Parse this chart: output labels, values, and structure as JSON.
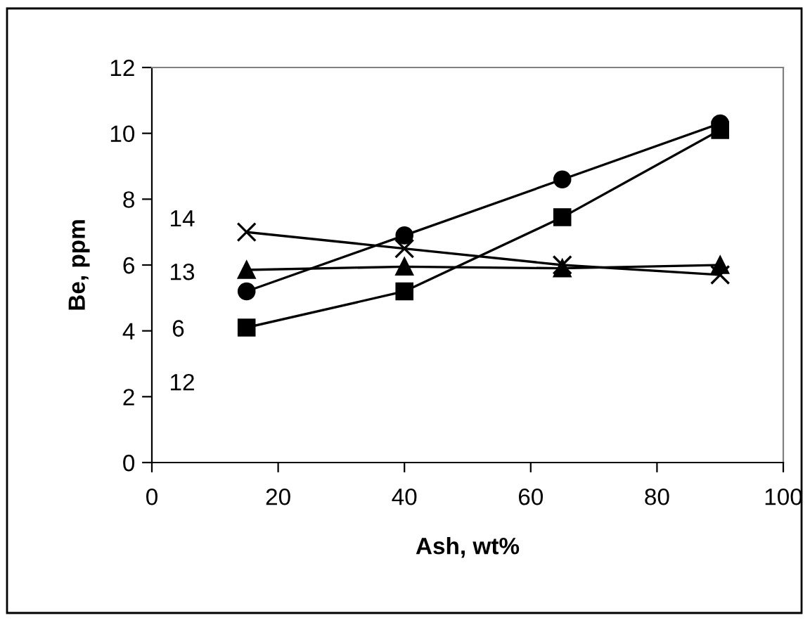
{
  "chart_data": {
    "type": "line",
    "xlabel": "Ash, wt%",
    "ylabel": "Be, ppm",
    "x": [
      15,
      40,
      65,
      90
    ],
    "series": [
      {
        "name": "14",
        "color": "#000000",
        "marker": "cross",
        "values": [
          7.0,
          6.5,
          6.0,
          5.7
        ]
      },
      {
        "name": "13",
        "color": "#000000",
        "marker": "triangle",
        "values": [
          5.85,
          5.95,
          5.9,
          6.0
        ]
      },
      {
        "name": "6",
        "color": "#000000",
        "marker": "circle",
        "values": [
          5.2,
          6.9,
          8.6,
          10.3
        ]
      },
      {
        "name": "12",
        "color": "#000000",
        "marker": "square",
        "values": [
          4.1,
          5.2,
          7.45,
          10.1
        ]
      }
    ],
    "xlim": [
      0,
      100
    ],
    "xticks": [
      0,
      20,
      40,
      60,
      80,
      100
    ],
    "ylim": [
      0,
      12
    ],
    "yticks": [
      0,
      2,
      4,
      6,
      8,
      10,
      12
    ],
    "grid": false,
    "legend": false,
    "line_style": "solid"
  }
}
